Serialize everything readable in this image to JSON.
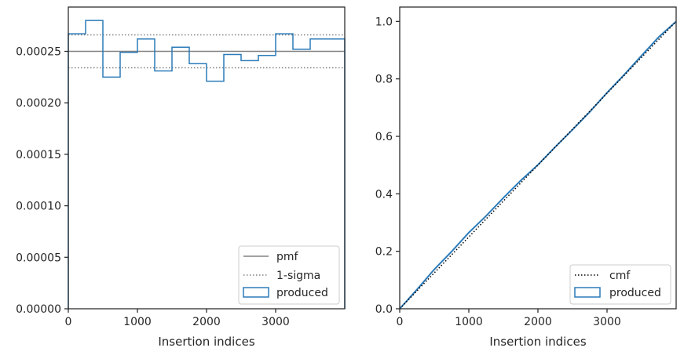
{
  "chart_data": [
    {
      "type": "line",
      "xlabel": "Insertion indices",
      "ylabel": "",
      "xlim": [
        0,
        4000
      ],
      "ylim": [
        0,
        0.000293
      ],
      "xticks": [
        0,
        1000,
        2000,
        3000
      ],
      "xtick_labels": [
        "0",
        "1000",
        "2000",
        "3000"
      ],
      "yticks": [
        0,
        5e-05,
        0.0001,
        0.00015,
        0.0002,
        0.00025
      ],
      "ytick_labels": [
        "0.00000",
        "0.00005",
        "0.00010",
        "0.00015",
        "0.00020",
        "0.00025"
      ],
      "grid": false,
      "legend_position": "lower right",
      "legend": [
        "pmf",
        "1-sigma",
        "produced"
      ],
      "pmf": 0.00025,
      "sigma_upper": 0.000266,
      "sigma_lower": 0.000234,
      "produced": {
        "bin_edges": [
          0,
          250,
          500,
          750,
          1000,
          1250,
          1500,
          1750,
          2000,
          2250,
          2500,
          2750,
          3000,
          3250,
          3500,
          3750,
          4000
        ],
        "values": [
          0.000267,
          0.00028,
          0.000225,
          0.000249,
          0.000262,
          0.000231,
          0.000254,
          0.000238,
          0.000221,
          0.000247,
          0.000241,
          0.000246,
          0.000267,
          0.000252,
          0.000262,
          0.000262
        ]
      },
      "colors": {
        "pmf": "#808080",
        "sigma": "#808080",
        "produced": "#2b7bb9"
      }
    },
    {
      "type": "line",
      "xlabel": "Insertion indices",
      "ylabel": "",
      "xlim": [
        0,
        4000
      ],
      "ylim": [
        0,
        1.05
      ],
      "xticks": [
        0,
        1000,
        2000,
        3000
      ],
      "xtick_labels": [
        "0",
        "1000",
        "2000",
        "3000"
      ],
      "yticks": [
        0,
        0.2,
        0.4,
        0.6,
        0.8,
        1.0
      ],
      "ytick_labels": [
        "0.0",
        "0.2",
        "0.4",
        "0.6",
        "0.8",
        "1.0"
      ],
      "grid": false,
      "legend_position": "lower right",
      "legend": [
        "cmf",
        "produced"
      ],
      "cmf": {
        "x": [
          0,
          4000
        ],
        "y": [
          0,
          1.0
        ]
      },
      "produced": {
        "x": [
          0,
          250,
          500,
          750,
          1000,
          1250,
          1500,
          1750,
          2000,
          2250,
          2500,
          2750,
          3000,
          3250,
          3500,
          3750,
          4000
        ],
        "y": [
          0,
          0.067,
          0.137,
          0.199,
          0.265,
          0.323,
          0.386,
          0.446,
          0.501,
          0.563,
          0.623,
          0.685,
          0.752,
          0.815,
          0.881,
          0.946,
          1.0
        ]
      },
      "colors": {
        "cmf": "#000000",
        "produced": "#2b7bb9"
      }
    }
  ]
}
